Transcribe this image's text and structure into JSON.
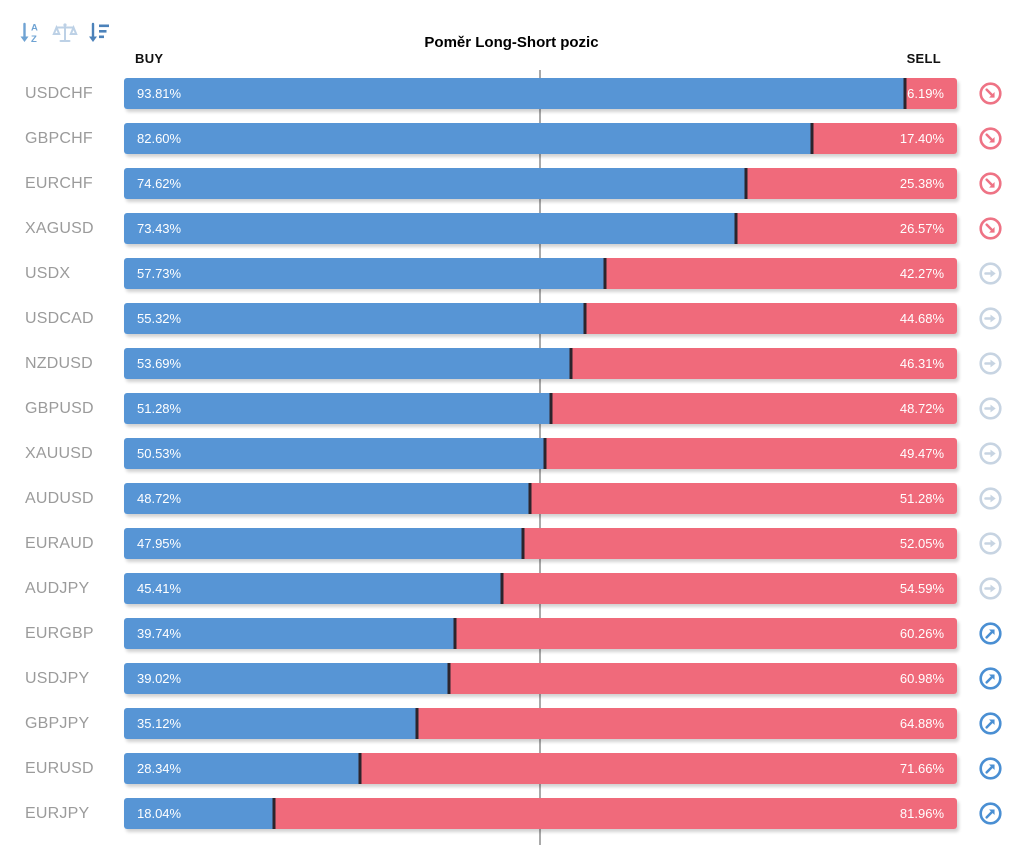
{
  "title": "Poměr Long-Short pozic",
  "toolbar": {
    "sort_alpha_icon": "sort-alphabetical",
    "balance_icon": "balance-scale",
    "sort_value_icon": "sort-by-value"
  },
  "headers": {
    "buy": "BUY",
    "sell": "SELL"
  },
  "colors": {
    "buy_bar": "#5795d5",
    "sell_bar": "#f06a7b",
    "divider": "#2c242c",
    "pair_label": "#9b9b9b",
    "center_line": "#a9a9a9",
    "signal_sell": "#ee7385",
    "signal_neutral": "#c7d4e2",
    "signal_buy": "#4a8fd3",
    "sort_alpha_icon": "#6fa3d3",
    "balance_icon": "#bdd1e6",
    "sort_value_icon": "#4c82ba",
    "title_text": "#000000"
  },
  "rows": [
    {
      "pair": "USDCHF",
      "buy_pct": 93.81,
      "sell_pct": 6.19,
      "buy_label": "93.81%",
      "sell_label": "6.19%",
      "signal": "sell"
    },
    {
      "pair": "GBPCHF",
      "buy_pct": 82.6,
      "sell_pct": 17.4,
      "buy_label": "82.60%",
      "sell_label": "17.40%",
      "signal": "sell"
    },
    {
      "pair": "EURCHF",
      "buy_pct": 74.62,
      "sell_pct": 25.38,
      "buy_label": "74.62%",
      "sell_label": "25.38%",
      "signal": "sell"
    },
    {
      "pair": "XAGUSD",
      "buy_pct": 73.43,
      "sell_pct": 26.57,
      "buy_label": "73.43%",
      "sell_label": "26.57%",
      "signal": "sell"
    },
    {
      "pair": "USDX",
      "buy_pct": 57.73,
      "sell_pct": 42.27,
      "buy_label": "57.73%",
      "sell_label": "42.27%",
      "signal": "neutral"
    },
    {
      "pair": "USDCAD",
      "buy_pct": 55.32,
      "sell_pct": 44.68,
      "buy_label": "55.32%",
      "sell_label": "44.68%",
      "signal": "neutral"
    },
    {
      "pair": "NZDUSD",
      "buy_pct": 53.69,
      "sell_pct": 46.31,
      "buy_label": "53.69%",
      "sell_label": "46.31%",
      "signal": "neutral"
    },
    {
      "pair": "GBPUSD",
      "buy_pct": 51.28,
      "sell_pct": 48.72,
      "buy_label": "51.28%",
      "sell_label": "48.72%",
      "signal": "neutral"
    },
    {
      "pair": "XAUUSD",
      "buy_pct": 50.53,
      "sell_pct": 49.47,
      "buy_label": "50.53%",
      "sell_label": "49.47%",
      "signal": "neutral"
    },
    {
      "pair": "AUDUSD",
      "buy_pct": 48.72,
      "sell_pct": 51.28,
      "buy_label": "48.72%",
      "sell_label": "51.28%",
      "signal": "neutral"
    },
    {
      "pair": "EURAUD",
      "buy_pct": 47.95,
      "sell_pct": 52.05,
      "buy_label": "47.95%",
      "sell_label": "52.05%",
      "signal": "neutral"
    },
    {
      "pair": "AUDJPY",
      "buy_pct": 45.41,
      "sell_pct": 54.59,
      "buy_label": "45.41%",
      "sell_label": "54.59%",
      "signal": "neutral"
    },
    {
      "pair": "EURGBP",
      "buy_pct": 39.74,
      "sell_pct": 60.26,
      "buy_label": "39.74%",
      "sell_label": "60.26%",
      "signal": "buy"
    },
    {
      "pair": "USDJPY",
      "buy_pct": 39.02,
      "sell_pct": 60.98,
      "buy_label": "39.02%",
      "sell_label": "60.98%",
      "signal": "buy"
    },
    {
      "pair": "GBPJPY",
      "buy_pct": 35.12,
      "sell_pct": 64.88,
      "buy_label": "35.12%",
      "sell_label": "64.88%",
      "signal": "buy"
    },
    {
      "pair": "EURUSD",
      "buy_pct": 28.34,
      "sell_pct": 71.66,
      "buy_label": "28.34%",
      "sell_label": "71.66%",
      "signal": "buy"
    },
    {
      "pair": "EURJPY",
      "buy_pct": 18.04,
      "sell_pct": 81.96,
      "buy_label": "18.04%",
      "sell_label": "81.96%",
      "signal": "buy"
    }
  ],
  "chart_data": {
    "type": "bar",
    "orientation": "horizontal-stacked",
    "title": "Poměr Long-Short pozic",
    "categories": [
      "USDCHF",
      "GBPCHF",
      "EURCHF",
      "XAGUSD",
      "USDX",
      "USDCAD",
      "NZDUSD",
      "GBPUSD",
      "XAUUSD",
      "AUDUSD",
      "EURAUD",
      "AUDJPY",
      "EURGBP",
      "USDJPY",
      "GBPJPY",
      "EURUSD",
      "EURJPY"
    ],
    "series": [
      {
        "name": "BUY",
        "color": "#5795d5",
        "values": [
          93.81,
          82.6,
          74.62,
          73.43,
          57.73,
          55.32,
          53.69,
          51.28,
          50.53,
          48.72,
          47.95,
          45.41,
          39.74,
          39.02,
          35.12,
          28.34,
          18.04
        ]
      },
      {
        "name": "SELL",
        "color": "#f06a7b",
        "values": [
          6.19,
          17.4,
          25.38,
          26.57,
          42.27,
          44.68,
          46.31,
          48.72,
          49.47,
          51.28,
          52.05,
          54.59,
          60.26,
          60.98,
          64.88,
          71.66,
          81.96
        ]
      }
    ],
    "signals": [
      "sell",
      "sell",
      "sell",
      "sell",
      "neutral",
      "neutral",
      "neutral",
      "neutral",
      "neutral",
      "neutral",
      "neutral",
      "neutral",
      "buy",
      "buy",
      "buy",
      "buy",
      "buy"
    ],
    "xlim": [
      0,
      100
    ],
    "center_gridline": 50,
    "grid": "single vertical line at 50%",
    "legend_position": "column headers: BUY top-left, SELL top-right"
  }
}
